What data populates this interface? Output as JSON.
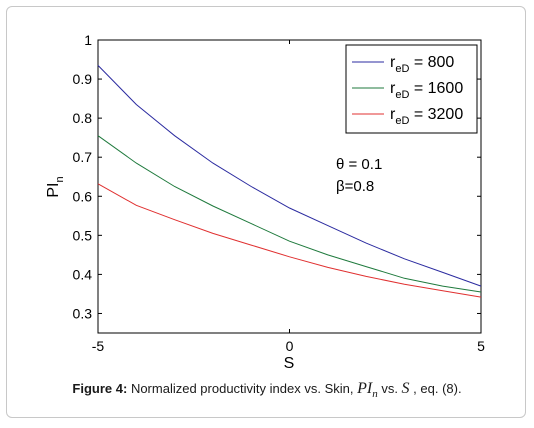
{
  "chart_data": {
    "type": "line",
    "xlabel": "S",
    "ylabel": "PI",
    "ylabel_sub": "n",
    "xlim": [
      -5,
      5
    ],
    "ylim": [
      0.25,
      1.0
    ],
    "xticks": [
      "-5",
      "0",
      "5"
    ],
    "yticks": [
      "0.3",
      "0.4",
      "0.5",
      "0.6",
      "0.7",
      "0.8",
      "0.9",
      "1"
    ],
    "grid": false,
    "legend_position": "top-right",
    "annotations": [
      "θ = 0.1",
      "β=0.8"
    ],
    "x": [
      -5,
      -4,
      -3,
      -2,
      -1,
      0,
      1,
      2,
      3,
      4,
      5
    ],
    "series": [
      {
        "name_main": "r",
        "name_sub": "eD",
        "name_value": " = 800",
        "color": "#2b2ba0",
        "values": [
          0.935,
          0.835,
          0.755,
          0.685,
          0.625,
          0.57,
          0.525,
          0.48,
          0.44,
          0.405,
          0.37
        ]
      },
      {
        "name_main": "r",
        "name_sub": "eD",
        "name_value": " = 1600",
        "color": "#1f7a3d",
        "values": [
          0.755,
          0.685,
          0.625,
          0.575,
          0.53,
          0.485,
          0.45,
          0.42,
          0.39,
          0.37,
          0.355
        ]
      },
      {
        "name_main": "r",
        "name_sub": "eD",
        "name_value": " = 3200",
        "color": "#e03030",
        "values": [
          0.632,
          0.577,
          0.54,
          0.505,
          0.475,
          0.445,
          0.418,
          0.395,
          0.375,
          0.358,
          0.342
        ]
      }
    ]
  },
  "caption": {
    "label": "Figure 4:",
    "text": " Normalized productivity index vs. Skin, ",
    "math1_main": "PI",
    "math1_sub": "n",
    "vs": " vs. ",
    "math2": "S",
    "tail": " , eq. (8)."
  }
}
